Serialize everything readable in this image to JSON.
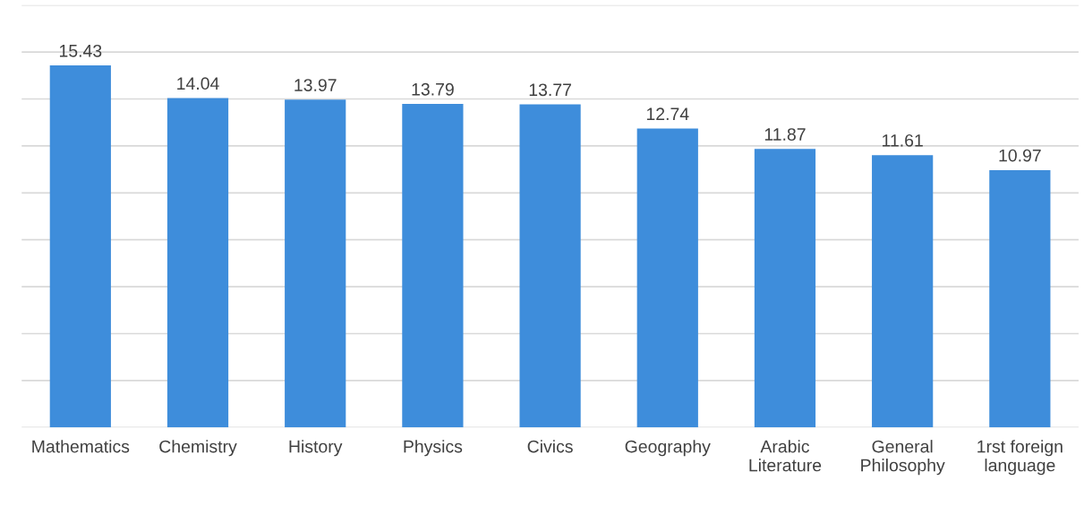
{
  "chart_data": {
    "type": "bar",
    "categories": [
      "Mathematics",
      "Chemistry",
      "History",
      "Physics",
      "Civics",
      "Geography",
      "Arabic\nLiterature",
      "General\nPhilosophy",
      "1rst foreign\nlanguage"
    ],
    "values": [
      15.43,
      14.04,
      13.97,
      13.79,
      13.77,
      12.74,
      11.87,
      11.61,
      10.97
    ],
    "color": "#3e8ddb",
    "ylim": [
      0,
      18
    ],
    "yticks": [
      {
        "value": 0,
        "label": null
      },
      {
        "value": 2,
        "label": null
      },
      {
        "value": 4,
        "label": null
      },
      {
        "value": 6,
        "label": null
      },
      {
        "value": 8,
        "label": null
      },
      {
        "value": 10,
        "label": null
      },
      {
        "value": 12,
        "label": null
      },
      {
        "value": 14,
        "label": null
      },
      {
        "value": 16,
        "label": null
      },
      {
        "value": 18,
        "label": null
      }
    ],
    "tick_labels": "x",
    "grid": "y",
    "data_labels": true
  }
}
